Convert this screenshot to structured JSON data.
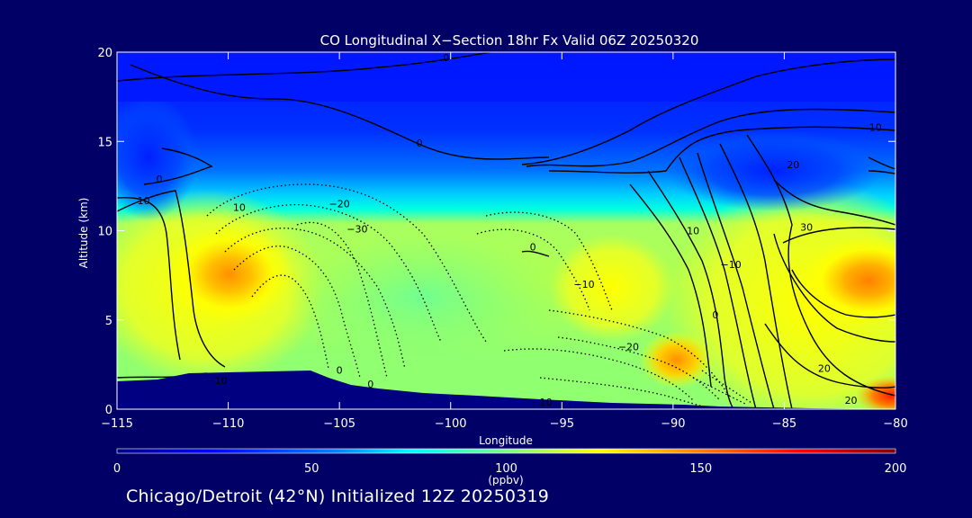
{
  "chart_data": {
    "type": "heatmap",
    "title": "CO Longitudinal X−Section 18hr  Fx Valid 06Z 20250320",
    "xlabel": "Longitude",
    "ylabel": "Altitude (km)",
    "xlim": [
      -115,
      -80
    ],
    "ylim": [
      0,
      20
    ],
    "x_ticks": [
      -115,
      -110,
      -105,
      -100,
      -95,
      -90,
      -85,
      -80
    ],
    "x_tick_labels": [
      "−115",
      "−110",
      "−105",
      "−100",
      "−95",
      "−90",
      "−85",
      "−80"
    ],
    "y_ticks": [
      0,
      5,
      10,
      15,
      20
    ],
    "y_tick_labels": [
      "0",
      "5",
      "10",
      "15",
      "20"
    ],
    "colorbar": {
      "min": 0,
      "max": 200,
      "ticks": [
        0,
        50,
        100,
        150,
        200
      ],
      "tick_labels": [
        "0",
        "50",
        "100",
        "150",
        "200"
      ],
      "unit": "(ppbv)",
      "colors": [
        "#000080",
        "#0000ff",
        "#0080ff",
        "#00ffff",
        "#80ff80",
        "#ffff00",
        "#ff8000",
        "#ff0000",
        "#800000"
      ]
    },
    "contour_labels": [
      {
        "text": "0",
        "lon": -100.2,
        "alt": 19.7
      },
      {
        "text": "0",
        "lon": -101.4,
        "alt": 14.9
      },
      {
        "text": "0",
        "lon": -113.1,
        "alt": 12.9
      },
      {
        "text": "10",
        "lon": -113.8,
        "alt": 11.7
      },
      {
        "text": "10",
        "lon": -109.5,
        "alt": 11.3
      },
      {
        "text": "−20",
        "lon": -105.0,
        "alt": 11.5
      },
      {
        "text": "−30",
        "lon": -104.2,
        "alt": 10.1
      },
      {
        "text": "0",
        "lon": -96.3,
        "alt": 9.1
      },
      {
        "text": "−10",
        "lon": -94.0,
        "alt": 7.0
      },
      {
        "text": "−20",
        "lon": -92.0,
        "alt": 3.5
      },
      {
        "text": "−10",
        "lon": -110.5,
        "alt": 1.6
      },
      {
        "text": "0",
        "lon": -105.0,
        "alt": 2.2
      },
      {
        "text": "0",
        "lon": -103.6,
        "alt": 1.4
      },
      {
        "text": "−10",
        "lon": -95.9,
        "alt": 0.4
      },
      {
        "text": "10",
        "lon": -89.1,
        "alt": 10.0
      },
      {
        "text": "0",
        "lon": -88.1,
        "alt": 5.3
      },
      {
        "text": "−10",
        "lon": -87.4,
        "alt": 8.1
      },
      {
        "text": "20",
        "lon": -84.6,
        "alt": 13.7
      },
      {
        "text": "30",
        "lon": -84.0,
        "alt": 10.2
      },
      {
        "text": "10",
        "lon": -80.9,
        "alt": 15.8
      },
      {
        "text": "20",
        "lon": -83.2,
        "alt": 2.3
      },
      {
        "text": "20",
        "lon": -82.0,
        "alt": 0.5
      }
    ]
  },
  "footer": {
    "text": "Chicago/Detroit (42°N) Initialized 12Z 20250319"
  }
}
